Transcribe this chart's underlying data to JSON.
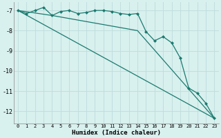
{
  "xlabel": "Humidex (Indice chaleur)",
  "background_color": "#d8f0ee",
  "grid_color": "#c0dede",
  "line_color": "#1a7a6e",
  "xlim": [
    -0.5,
    23.5
  ],
  "ylim": [
    -12.6,
    -6.6
  ],
  "yticks": [
    -7,
    -8,
    -9,
    -10,
    -11,
    -12
  ],
  "xticks": [
    0,
    1,
    2,
    3,
    4,
    5,
    6,
    7,
    8,
    9,
    10,
    11,
    12,
    13,
    14,
    15,
    16,
    17,
    18,
    19,
    20,
    21,
    22,
    23
  ],
  "series_main": {
    "x": [
      0,
      1,
      2,
      3,
      4,
      5,
      6,
      7,
      8,
      9,
      10,
      11,
      12,
      13,
      14,
      15,
      16,
      17,
      18,
      19,
      20,
      21,
      22,
      23
    ],
    "y": [
      -7.0,
      -7.15,
      -7.0,
      -6.85,
      -7.25,
      -7.05,
      -7.0,
      -7.15,
      -7.1,
      -7.0,
      -7.0,
      -7.05,
      -7.15,
      -7.2,
      -7.15,
      -8.05,
      -8.5,
      -8.3,
      -8.6,
      -9.35,
      -10.85,
      -11.1,
      -11.6,
      -12.35
    ]
  },
  "series_line1": {
    "x": [
      0,
      23
    ],
    "y": [
      -7.0,
      -12.35
    ]
  },
  "series_line2": {
    "x": [
      0,
      4,
      14,
      23
    ],
    "y": [
      -7.0,
      -7.25,
      -8.0,
      -12.35
    ]
  }
}
